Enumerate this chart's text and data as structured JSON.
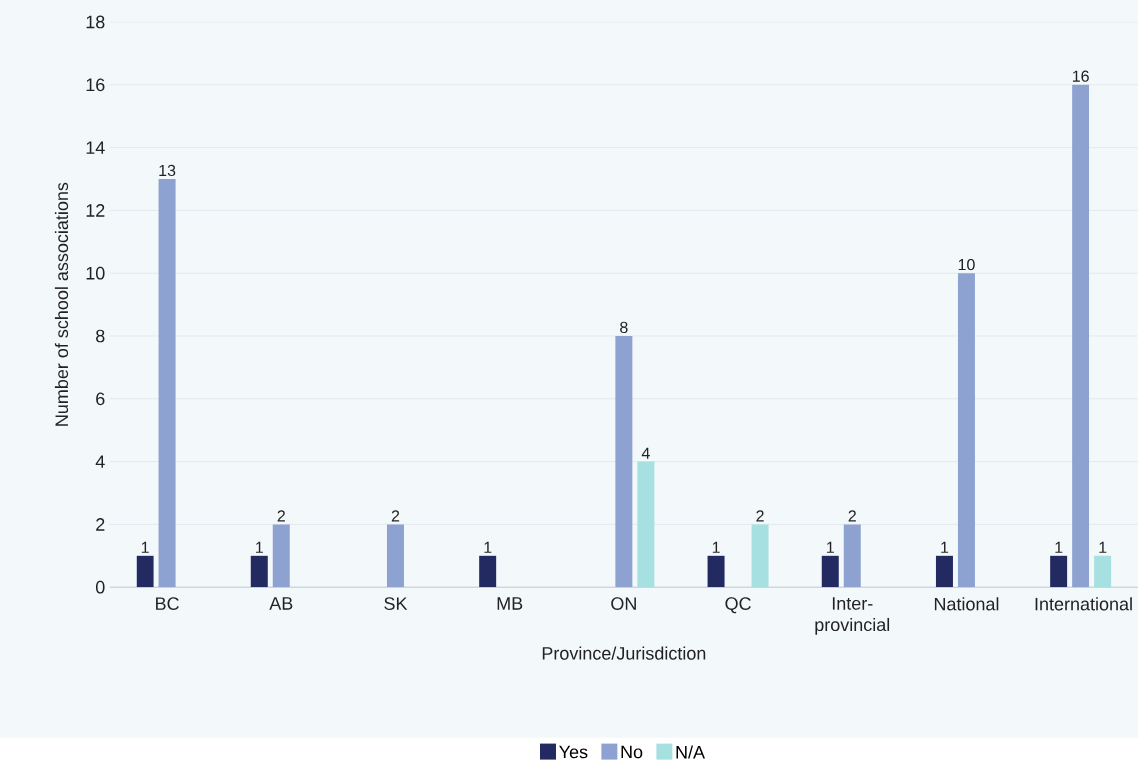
{
  "chart_data": {
    "type": "bar",
    "categories": [
      "BC",
      "AB",
      "SK",
      "MB",
      "ON",
      "QC",
      "Inter-provincial",
      "National",
      "International"
    ],
    "series": [
      {
        "name": "Yes",
        "color": "#232a62",
        "values": [
          1,
          1,
          null,
          1,
          null,
          1,
          1,
          1,
          1
        ]
      },
      {
        "name": "No",
        "color": "#8da2d0",
        "values": [
          13,
          2,
          2,
          null,
          8,
          null,
          2,
          10,
          16
        ]
      },
      {
        "name": "N/A",
        "color": "#a6e0e0",
        "values": [
          null,
          null,
          null,
          null,
          4,
          2,
          null,
          null,
          1
        ]
      }
    ],
    "xlabel": "Province/Jurisdiction",
    "ylabel": "Number of school associations",
    "ylim": [
      0,
      18
    ],
    "yticks": [
      0,
      2,
      4,
      6,
      8,
      10,
      12,
      14,
      16,
      18
    ],
    "grid": "y",
    "legend": "bottom",
    "data_labels": true
  }
}
